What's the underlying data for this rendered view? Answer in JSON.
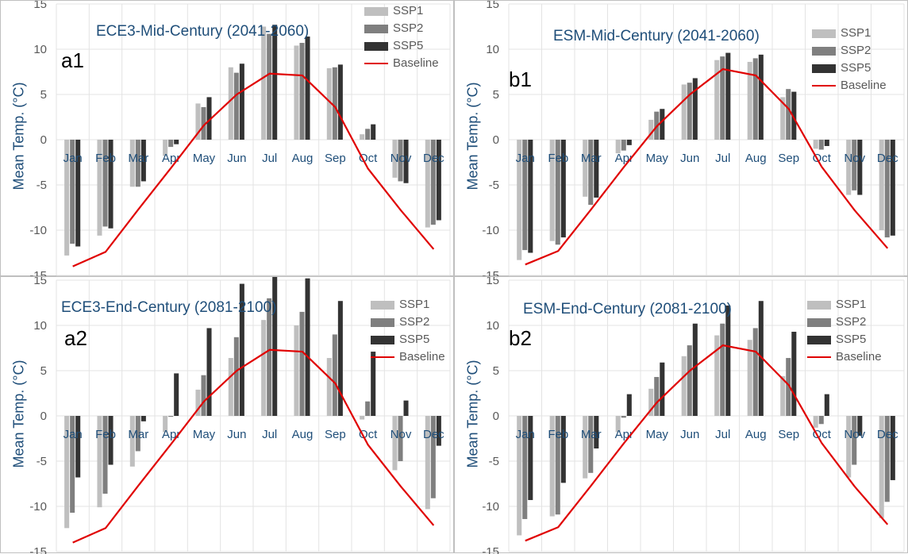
{
  "colors": {
    "ssp1": "#bfbfbf",
    "ssp2": "#7f7f7f",
    "ssp5": "#333333",
    "baseline": "#e00000",
    "grid": "#e3e3e3",
    "axis_text": "#595959",
    "title_text": "#1f4e79"
  },
  "chart_data": [
    {
      "id": "a1",
      "type": "bar",
      "panel_label": "a1",
      "title": "ECE3-Mid-Century (2041-2060)",
      "ylabel": "Mean Temp. (°C)",
      "ylim": [
        -15,
        15
      ],
      "yticks": [
        -15,
        -10,
        -5,
        0,
        5,
        10,
        15
      ],
      "categories": [
        "Jan",
        "Feb",
        "Mar",
        "Apr",
        "May",
        "Jun",
        "Jul",
        "Aug",
        "Sep",
        "Oct",
        "Nov",
        "Dec"
      ],
      "series": [
        {
          "name": "SSP1",
          "values": [
            -12.8,
            -10.6,
            -5.2,
            -1.8,
            4.0,
            8.0,
            12.5,
            10.4,
            7.9,
            0.6,
            -4.2,
            -9.7
          ]
        },
        {
          "name": "SSP2",
          "values": [
            -11.5,
            -9.6,
            -5.2,
            -0.8,
            3.6,
            7.4,
            11.7,
            10.7,
            8.0,
            1.2,
            -4.6,
            -9.4
          ]
        },
        {
          "name": "SSP5",
          "values": [
            -11.8,
            -9.8,
            -4.6,
            -0.5,
            4.7,
            8.4,
            12.7,
            11.4,
            8.3,
            1.7,
            -4.8,
            -8.9
          ]
        }
      ],
      "baseline": {
        "name": "Baseline",
        "values": [
          -14.0,
          -12.4,
          -7.7,
          -3.1,
          1.6,
          5.0,
          7.3,
          7.1,
          3.6,
          -3.2,
          -7.8,
          -12.1
        ]
      },
      "legend_position": "top-right",
      "grid": true
    },
    {
      "id": "b1",
      "type": "bar",
      "panel_label": "b1",
      "title": "ESM-Mid-Century (2041-2060)",
      "ylabel": "Mean Temp. (°C)",
      "ylim": [
        -15,
        15
      ],
      "yticks": [
        -15,
        -10,
        -5,
        0,
        5,
        10,
        15
      ],
      "categories": [
        "Jan",
        "Feb",
        "Mar",
        "Apr",
        "May",
        "Jun",
        "Jul",
        "Aug",
        "Sep",
        "Oct",
        "Nov",
        "Dec"
      ],
      "series": [
        {
          "name": "SSP1",
          "values": [
            -13.3,
            -11.2,
            -6.3,
            -1.5,
            2.2,
            6.1,
            8.8,
            8.6,
            4.7,
            -1.0,
            -6.1,
            -10.0
          ]
        },
        {
          "name": "SSP2",
          "values": [
            -12.2,
            -11.6,
            -7.2,
            -1.2,
            3.1,
            6.3,
            9.2,
            9.0,
            5.6,
            -1.1,
            -5.6,
            -10.8
          ]
        },
        {
          "name": "SSP5",
          "values": [
            -12.5,
            -10.8,
            -6.4,
            -0.6,
            3.4,
            6.8,
            9.6,
            9.4,
            5.3,
            -0.7,
            -6.1,
            -10.6
          ]
        }
      ],
      "baseline": {
        "name": "Baseline",
        "values": [
          -13.8,
          -12.3,
          -7.7,
          -3.0,
          1.5,
          5.0,
          7.8,
          7.1,
          3.4,
          -3.0,
          -7.8,
          -12.0
        ]
      },
      "legend_position": "top-right",
      "grid": true
    },
    {
      "id": "a2",
      "type": "bar",
      "panel_label": "a2",
      "title": "ECE3-End-Century (2081-2100)",
      "ylabel": "Mean Temp. (°C)",
      "ylim": [
        -15,
        15
      ],
      "yticks": [
        -15,
        -10,
        -5,
        0,
        5,
        10,
        15
      ],
      "categories": [
        "Jan",
        "Feb",
        "Mar",
        "Apr",
        "May",
        "Jun",
        "Jul",
        "Aug",
        "Sep",
        "Oct",
        "Nov",
        "Dec"
      ],
      "series": [
        {
          "name": "SSP1",
          "values": [
            -12.4,
            -10.1,
            -5.6,
            -1.8,
            2.9,
            6.4,
            10.6,
            10.0,
            6.4,
            -0.4,
            -6.0,
            -10.3
          ]
        },
        {
          "name": "SSP2",
          "values": [
            -10.7,
            -8.6,
            -3.9,
            -0.1,
            4.5,
            8.7,
            13.0,
            11.5,
            9.0,
            1.6,
            -5.0,
            -9.1
          ]
        },
        {
          "name": "SSP5",
          "values": [
            -6.8,
            -5.4,
            -0.6,
            4.7,
            9.7,
            14.6,
            17.5,
            15.2,
            12.7,
            7.1,
            1.7,
            -3.3
          ]
        }
      ],
      "baseline": {
        "name": "Baseline",
        "values": [
          -14.0,
          -12.4,
          -7.7,
          -3.1,
          1.6,
          5.0,
          7.3,
          7.1,
          3.6,
          -3.2,
          -7.8,
          -12.1
        ]
      },
      "legend_position": "top-right",
      "grid": true
    },
    {
      "id": "b2",
      "type": "bar",
      "panel_label": "b2",
      "title": "ESM-End-Century (2081-2100)",
      "ylabel": "Mean Temp. (°C)",
      "ylim": [
        -15,
        15
      ],
      "yticks": [
        -15,
        -10,
        -5,
        0,
        5,
        10,
        15
      ],
      "categories": [
        "Jan",
        "Feb",
        "Mar",
        "Apr",
        "May",
        "Jun",
        "Jul",
        "Aug",
        "Sep",
        "Oct",
        "Nov",
        "Dec"
      ],
      "series": [
        {
          "name": "SSP1",
          "values": [
            -13.2,
            -11.1,
            -6.9,
            -1.8,
            3.0,
            6.6,
            8.9,
            8.4,
            4.4,
            -1.3,
            -6.8,
            -11.3
          ]
        },
        {
          "name": "SSP2",
          "values": [
            -11.4,
            -10.9,
            -6.3,
            -0.2,
            4.3,
            7.8,
            10.2,
            9.7,
            6.4,
            -0.9,
            -5.4,
            -9.5
          ]
        },
        {
          "name": "SSP5",
          "values": [
            -9.3,
            -7.4,
            -3.6,
            2.4,
            5.9,
            10.2,
            12.2,
            12.7,
            9.3,
            2.4,
            -2.2,
            -7.1
          ]
        }
      ],
      "baseline": {
        "name": "Baseline",
        "values": [
          -13.8,
          -12.3,
          -7.7,
          -3.0,
          1.5,
          5.0,
          7.8,
          7.1,
          3.4,
          -3.0,
          -7.8,
          -12.0
        ]
      },
      "legend_position": "top-right",
      "grid": true
    }
  ]
}
